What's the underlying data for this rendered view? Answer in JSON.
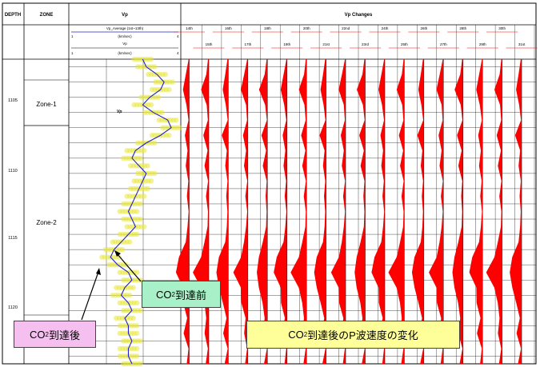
{
  "header": {
    "depth_label": "DEPTH",
    "zone_label": "ZONE",
    "vp_label": "Vp",
    "vp_changes_label": "Vp Changes",
    "vp_avg_label": "Vp_Average (1st~13th)",
    "vp_sub_label": "Vp",
    "unit_label": "(km/sec)",
    "change_unit_label": "(km/sec)",
    "scale_left": "1",
    "scale_right": "4",
    "change_scale_left": "-1",
    "change_scale_right": "1"
  },
  "zones": [
    {
      "label": "Zone-1"
    },
    {
      "label": "Zone-2"
    }
  ],
  "depths": [
    "1105",
    "1110",
    "1115",
    "1120"
  ],
  "track_labels_top": [
    "14th",
    "16th",
    "18th",
    "20th",
    "22nd",
    "24th",
    "26th",
    "28th",
    "30th"
  ],
  "track_labels_bottom": [
    "15th",
    "17th",
    "19th",
    "21st",
    "23rd",
    "25th",
    "27th",
    "29th",
    "31st"
  ],
  "vp_curve_label": "Vp",
  "callouts": {
    "before_main": "CO",
    "before_sub": "2",
    "before_rest": "到達前",
    "after_main": "CO",
    "after_sub": "2",
    "after_rest": "到達後",
    "change_main": "CO",
    "change_sub": "2",
    "change_rest": "到達後のP波速度の変化"
  },
  "colors": {
    "change_fill": "#ff0000",
    "vp_line": "#2222cc",
    "vp_scatter": "#e8e83a",
    "grid": "#000000",
    "callout_before": "#a8f0c8",
    "callout_after": "#f5c0f0",
    "callout_change": "#ffff99"
  },
  "chart_data": {
    "type": "line",
    "title": "",
    "ylabel": "DEPTH",
    "ylim": [
      1121.5,
      1101.5
    ],
    "vp_xlim": [
      1,
      4
    ],
    "vp_change_xlim": [
      -1,
      1
    ],
    "vp_depth": [
      1101.5,
      1102,
      1102.5,
      1103,
      1103.5,
      1104,
      1104.5,
      1105,
      1105.5,
      1106,
      1106.5,
      1107,
      1107.5,
      1108,
      1108.5,
      1109,
      1109.5,
      1110,
      1110.5,
      1111,
      1111.5,
      1112,
      1112.5,
      1113,
      1113.5,
      1114,
      1114.5,
      1115,
      1115.5,
      1116,
      1116.5,
      1117,
      1117.5,
      1118,
      1118.5,
      1119,
      1119.5,
      1120,
      1120.5,
      1121,
      1121.5
    ],
    "vp_values": [
      3.0,
      3.1,
      3.4,
      3.6,
      3.5,
      3.2,
      3.0,
      3.3,
      3.7,
      3.8,
      3.5,
      3.1,
      2.8,
      2.7,
      2.9,
      3.1,
      3.0,
      2.9,
      2.8,
      2.7,
      2.6,
      2.7,
      2.8,
      2.6,
      2.4,
      2.2,
      2.1,
      2.3,
      2.6,
      2.7,
      2.5,
      2.4,
      2.6,
      2.7,
      2.5,
      2.6,
      2.6,
      2.7,
      2.6,
      2.6,
      2.7
    ],
    "change_tracks": [
      "14th",
      "15th",
      "16th",
      "17th",
      "18th",
      "19th",
      "20th",
      "21st",
      "22nd",
      "23rd",
      "24th",
      "25th",
      "26th",
      "27th",
      "28th",
      "29th",
      "30th",
      "31st"
    ],
    "change_depth": [
      1101.5,
      1102.5,
      1103.5,
      1104.5,
      1105.5,
      1106.5,
      1107.5,
      1108.5,
      1109.5,
      1110.5,
      1111.5,
      1112.5,
      1113.5,
      1114.5,
      1115.5,
      1116.5,
      1117.5,
      1118.5,
      1119.5,
      1120.5,
      1121.5
    ],
    "change_base_profile": [
      0.05,
      0.2,
      0.45,
      0.15,
      0.05,
      0.35,
      0.1,
      0.25,
      0.05,
      0.15,
      0.05,
      0.1,
      0.25,
      0.55,
      0.85,
      0.5,
      0.35,
      0.15,
      0.3,
      0.05,
      0.2
    ]
  }
}
